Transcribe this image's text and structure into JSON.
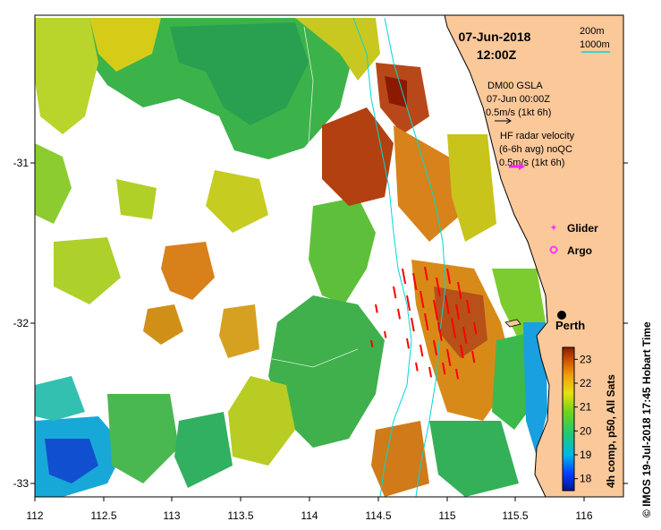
{
  "header": {
    "date": "07-Jun-2018",
    "time": "12:00Z"
  },
  "scale": {
    "contour1": "200m",
    "contour2": "1000m"
  },
  "legend": {
    "gsla_title": "DM00 GSLA",
    "gsla_date": "07-Jun 00:00Z",
    "gsla_vec": "0.5m/s (1kt 6h)",
    "hf_line1": "HF radar velocity",
    "hf_line2": "(6-6h avg) noQC",
    "hf_vec": "0.5m/s (1kt 6h)",
    "glider": "Glider",
    "argo": "Argo",
    "glider_color": "#ff33ff",
    "argo_color": "#ff33ff",
    "hf_color": "#ff22ff"
  },
  "city": {
    "name": "Perth"
  },
  "axes": {
    "x_ticks": [
      "112",
      "112.5",
      "113",
      "113.5",
      "114",
      "114.5",
      "115",
      "115.5",
      "116"
    ],
    "y_ticks": [
      "-31",
      "-32",
      "-33"
    ]
  },
  "colorbar": {
    "label": "4h comp, p50, All Sats",
    "ticks": [
      "23",
      "22",
      "21",
      "20",
      "19",
      "18"
    ],
    "min": 17.5,
    "max": 23.5
  },
  "credit": "© IMOS 19-Jul-2018 17:45 Hobart Time",
  "colors": {
    "land": "#fbc89a",
    "cold": "#00128c",
    "warm": "#8c1a00",
    "contour": "#00e0e0",
    "vector": "#ff0000"
  }
}
